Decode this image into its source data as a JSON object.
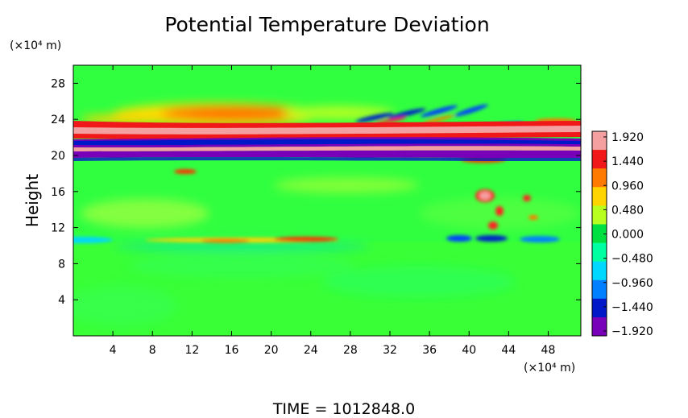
{
  "chart_data": {
    "type": "heatmap",
    "title": "Potential Temperature Deviation",
    "xlabel": "",
    "ylabel": "Height",
    "x_unit_label": "(×10⁴ m)",
    "y_unit_label": "(×10⁴ m)",
    "x_ticks": [
      4,
      8,
      12,
      16,
      20,
      24,
      28,
      32,
      36,
      40,
      44,
      48
    ],
    "y_ticks": [
      4,
      8,
      12,
      16,
      20,
      24,
      28
    ],
    "xlim": [
      0,
      51.3
    ],
    "ylim": [
      0,
      30
    ],
    "colorbar_range": [
      -1.92,
      1.92
    ],
    "colorbar_labels": [
      "1.920",
      "1.440",
      "0.960",
      "0.480",
      "0.000",
      "−0.480",
      "−0.960",
      "−1.440",
      "−1.920"
    ],
    "colorbar_colors": [
      "#f4a0a0",
      "#f01818",
      "#ff7a00",
      "#ffd400",
      "#b8ff20",
      "#00e040",
      "#00ffa0",
      "#00d8ff",
      "#0080ff",
      "#0018c8",
      "#7800b8"
    ],
    "footer": "TIME = 1012848.0"
  }
}
